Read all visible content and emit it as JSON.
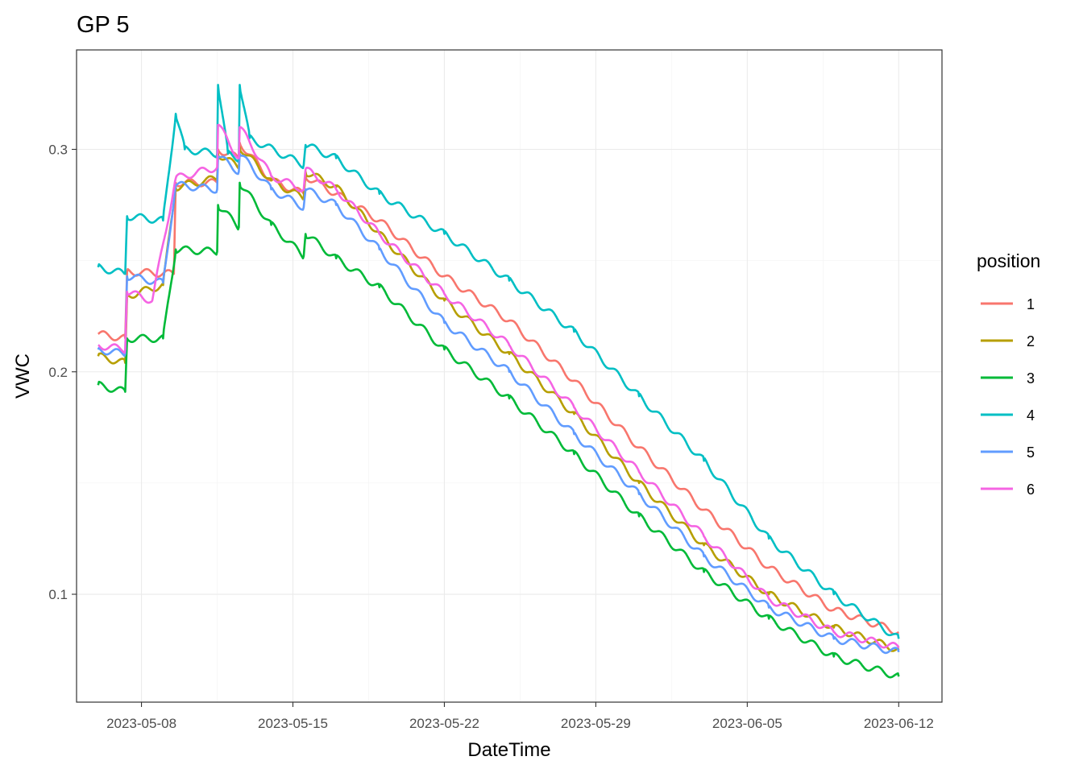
{
  "chart_data": {
    "type": "line",
    "title": "GP 5",
    "xlabel": "DateTime",
    "ylabel": "VWC",
    "xlim": [
      "2023-05-05",
      "2023-06-14"
    ],
    "ylim": [
      0.0515,
      0.3447
    ],
    "x_ticks": [
      "2023-05-08",
      "2023-05-15",
      "2023-05-22",
      "2023-05-29",
      "2023-06-05",
      "2023-06-12"
    ],
    "y_ticks": [
      "0.1",
      "0.2",
      "0.3"
    ],
    "grid": true,
    "legend": {
      "title": "position",
      "placement": "right"
    },
    "series": [
      {
        "name": "1",
        "color": "#F8766D",
        "points": [
          [
            "2023-05-06 00:00",
            0.217
          ],
          [
            "2023-05-07 06:00",
            0.215
          ],
          [
            "2023-05-07 08:00",
            0.245
          ],
          [
            "2023-05-09 12:00",
            0.244
          ],
          [
            "2023-05-09 14:00",
            0.285
          ],
          [
            "2023-05-11 12:00",
            0.285
          ],
          [
            "2023-05-11 13:00",
            0.3
          ],
          [
            "2023-05-12 12:00",
            0.296
          ],
          [
            "2023-05-12 13:00",
            0.303
          ],
          [
            "2023-05-14 00:00",
            0.286
          ],
          [
            "2023-05-15 12:00",
            0.28
          ],
          [
            "2023-05-15 14:00",
            0.288
          ],
          [
            "2023-05-17 00:00",
            0.28
          ],
          [
            "2023-05-19 00:00",
            0.268
          ],
          [
            "2023-05-22 00:00",
            0.243
          ],
          [
            "2023-05-25 00:00",
            0.223
          ],
          [
            "2023-05-28 00:00",
            0.196
          ],
          [
            "2023-05-31 00:00",
            0.166
          ],
          [
            "2023-06-03 00:00",
            0.138
          ],
          [
            "2023-06-06 00:00",
            0.112
          ],
          [
            "2023-06-09 00:00",
            0.093
          ],
          [
            "2023-06-12 00:00",
            0.083
          ]
        ]
      },
      {
        "name": "2",
        "color": "#B79F00",
        "points": [
          [
            "2023-05-06 00:00",
            0.207
          ],
          [
            "2023-05-07 06:00",
            0.204
          ],
          [
            "2023-05-07 08:00",
            0.234
          ],
          [
            "2023-05-09 00:00",
            0.239
          ],
          [
            "2023-05-09 14:00",
            0.283
          ],
          [
            "2023-05-11 12:00",
            0.287
          ],
          [
            "2023-05-11 13:00",
            0.298
          ],
          [
            "2023-05-12 12:00",
            0.292
          ],
          [
            "2023-05-12 13:00",
            0.301
          ],
          [
            "2023-05-14 00:00",
            0.286
          ],
          [
            "2023-05-15 12:00",
            0.278
          ],
          [
            "2023-05-15 14:00",
            0.29
          ],
          [
            "2023-05-17 00:00",
            0.283
          ],
          [
            "2023-05-19 00:00",
            0.262
          ],
          [
            "2023-05-22 00:00",
            0.232
          ],
          [
            "2023-05-25 00:00",
            0.208
          ],
          [
            "2023-05-28 00:00",
            0.181
          ],
          [
            "2023-05-31 00:00",
            0.15
          ],
          [
            "2023-06-03 00:00",
            0.122
          ],
          [
            "2023-06-06 00:00",
            0.1
          ],
          [
            "2023-06-09 00:00",
            0.085
          ],
          [
            "2023-06-12 00:00",
            0.075
          ]
        ]
      },
      {
        "name": "3",
        "color": "#00BA38",
        "points": [
          [
            "2023-05-06 00:00",
            0.194
          ],
          [
            "2023-05-07 06:00",
            0.191
          ],
          [
            "2023-05-07 08:00",
            0.215
          ],
          [
            "2023-05-09 00:00",
            0.215
          ],
          [
            "2023-05-09 14:00",
            0.255
          ],
          [
            "2023-05-11 12:00",
            0.254
          ],
          [
            "2023-05-11 13:00",
            0.275
          ],
          [
            "2023-05-12 12:00",
            0.265
          ],
          [
            "2023-05-12 13:00",
            0.285
          ],
          [
            "2023-05-14 00:00",
            0.266
          ],
          [
            "2023-05-15 12:00",
            0.252
          ],
          [
            "2023-05-15 14:00",
            0.262
          ],
          [
            "2023-05-17 00:00",
            0.251
          ],
          [
            "2023-05-19 00:00",
            0.238
          ],
          [
            "2023-05-22 00:00",
            0.21
          ],
          [
            "2023-05-25 00:00",
            0.188
          ],
          [
            "2023-05-28 00:00",
            0.163
          ],
          [
            "2023-05-31 00:00",
            0.135
          ],
          [
            "2023-06-03 00:00",
            0.11
          ],
          [
            "2023-06-06 00:00",
            0.089
          ],
          [
            "2023-06-09 00:00",
            0.072
          ],
          [
            "2023-06-12 00:00",
            0.063
          ]
        ]
      },
      {
        "name": "4",
        "color": "#00BFC4",
        "points": [
          [
            "2023-05-06 00:00",
            0.247
          ],
          [
            "2023-05-07 06:00",
            0.244
          ],
          [
            "2023-05-07 08:00",
            0.27
          ],
          [
            "2023-05-09 00:00",
            0.268
          ],
          [
            "2023-05-09 14:00",
            0.316
          ],
          [
            "2023-05-10 00:00",
            0.3
          ],
          [
            "2023-05-11 12:00",
            0.298
          ],
          [
            "2023-05-11 13:00",
            0.329
          ],
          [
            "2023-05-12 00:00",
            0.298
          ],
          [
            "2023-05-12 12:00",
            0.296
          ],
          [
            "2023-05-12 13:00",
            0.329
          ],
          [
            "2023-05-13 00:00",
            0.305
          ],
          [
            "2023-05-15 12:00",
            0.293
          ],
          [
            "2023-05-15 14:00",
            0.302
          ],
          [
            "2023-05-17 00:00",
            0.296
          ],
          [
            "2023-05-19 00:00",
            0.28
          ],
          [
            "2023-05-22 00:00",
            0.262
          ],
          [
            "2023-05-25 00:00",
            0.241
          ],
          [
            "2023-05-28 00:00",
            0.218
          ],
          [
            "2023-05-31 00:00",
            0.189
          ],
          [
            "2023-06-03 00:00",
            0.16
          ],
          [
            "2023-06-06 00:00",
            0.125
          ],
          [
            "2023-06-09 00:00",
            0.1
          ],
          [
            "2023-06-12 00:00",
            0.08
          ]
        ]
      },
      {
        "name": "5",
        "color": "#619CFF",
        "points": [
          [
            "2023-05-06 00:00",
            0.21
          ],
          [
            "2023-05-07 06:00",
            0.208
          ],
          [
            "2023-05-07 08:00",
            0.243
          ],
          [
            "2023-05-09 00:00",
            0.24
          ],
          [
            "2023-05-09 14:00",
            0.284
          ],
          [
            "2023-05-11 12:00",
            0.282
          ],
          [
            "2023-05-11 13:00",
            0.297
          ],
          [
            "2023-05-12 12:00",
            0.29
          ],
          [
            "2023-05-12 13:00",
            0.298
          ],
          [
            "2023-05-14 00:00",
            0.282
          ],
          [
            "2023-05-15 12:00",
            0.274
          ],
          [
            "2023-05-15 14:00",
            0.282
          ],
          [
            "2023-05-17 00:00",
            0.275
          ],
          [
            "2023-05-19 00:00",
            0.255
          ],
          [
            "2023-05-22 00:00",
            0.222
          ],
          [
            "2023-05-25 00:00",
            0.2
          ],
          [
            "2023-05-28 00:00",
            0.172
          ],
          [
            "2023-05-31 00:00",
            0.145
          ],
          [
            "2023-06-03 00:00",
            0.117
          ],
          [
            "2023-06-06 00:00",
            0.094
          ],
          [
            "2023-06-09 00:00",
            0.08
          ],
          [
            "2023-06-12 00:00",
            0.074
          ]
        ]
      },
      {
        "name": "6",
        "color": "#F564E3",
        "points": [
          [
            "2023-05-06 00:00",
            0.212
          ],
          [
            "2023-05-07 06:00",
            0.21
          ],
          [
            "2023-05-07 08:00",
            0.236
          ],
          [
            "2023-05-08 12:00",
            0.232
          ],
          [
            "2023-05-09 14:00",
            0.287
          ],
          [
            "2023-05-11 12:00",
            0.292
          ],
          [
            "2023-05-11 13:00",
            0.311
          ],
          [
            "2023-05-12 12:00",
            0.296
          ],
          [
            "2023-05-12 13:00",
            0.31
          ],
          [
            "2023-05-14 00:00",
            0.288
          ],
          [
            "2023-05-15 12:00",
            0.282
          ],
          [
            "2023-05-15 14:00",
            0.291
          ],
          [
            "2023-05-17 00:00",
            0.282
          ],
          [
            "2023-05-19 00:00",
            0.262
          ],
          [
            "2023-05-22 00:00",
            0.235
          ],
          [
            "2023-05-25 00:00",
            0.212
          ],
          [
            "2023-05-28 00:00",
            0.184
          ],
          [
            "2023-05-31 00:00",
            0.155
          ],
          [
            "2023-06-03 00:00",
            0.126
          ],
          [
            "2023-06-06 00:00",
            0.098
          ],
          [
            "2023-06-09 00:00",
            0.083
          ],
          [
            "2023-06-12 00:00",
            0.076
          ]
        ]
      }
    ]
  }
}
